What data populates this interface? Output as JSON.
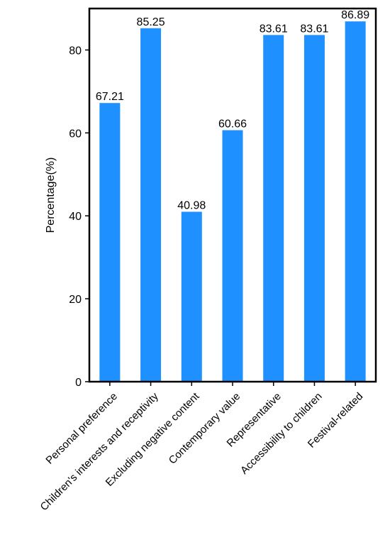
{
  "chart_data": {
    "type": "bar",
    "categories": [
      "Personal preference",
      "Children's interests and receptivity",
      "Excluding negative content",
      "Contemporary value",
      "Representative",
      "Accessibility to children",
      "Festival-related"
    ],
    "values": [
      67.21,
      85.25,
      40.98,
      60.66,
      83.61,
      83.61,
      86.89
    ],
    "data_labels": [
      "67.21",
      "85.25",
      "40.98",
      "60.66",
      "83.61",
      "83.61",
      "86.89"
    ],
    "title": "",
    "xlabel": "",
    "ylabel": "Percentage(%)",
    "ylim": [
      0,
      90
    ],
    "yticks": [
      0,
      20,
      40,
      60,
      80
    ],
    "grid": false,
    "legend": "none",
    "bar_color": "#1E90FF"
  }
}
